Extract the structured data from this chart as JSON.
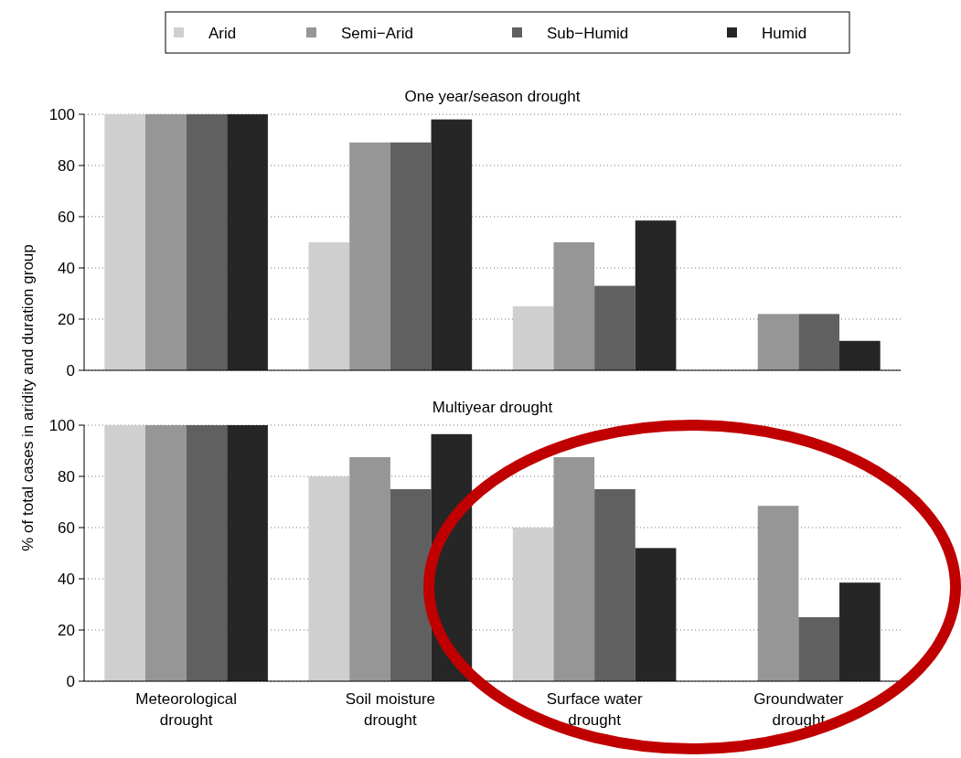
{
  "chart_data": [
    {
      "type": "bar",
      "title": "One year/season drought",
      "ylabel": "% of total cases in aridity and duration group",
      "categories": [
        "Meteorological drought",
        "Soil moisture drought",
        "Surface water drought",
        "Groundwater drought"
      ],
      "series": [
        {
          "name": "Arid",
          "color": "#cfcfcf",
          "values": [
            100,
            50,
            25,
            0
          ]
        },
        {
          "name": "Semi−Arid",
          "color": "#969696",
          "values": [
            100,
            89,
            50,
            22
          ]
        },
        {
          "name": "Sub−Humid",
          "color": "#606060",
          "values": [
            100,
            89,
            33,
            22
          ]
        },
        {
          "name": "Humid",
          "color": "#262626",
          "values": [
            100,
            98,
            58.5,
            11.5
          ]
        }
      ],
      "ylim": [
        0,
        100
      ],
      "yticks": [
        0,
        20,
        40,
        60,
        80,
        100
      ],
      "grid": "y",
      "legend": "top",
      "tick_labels": "y"
    },
    {
      "type": "bar",
      "title": "Multiyear drought",
      "categories": [
        "Meteorological drought",
        "Soil moisture drought",
        "Surface water drought",
        "Groundwater drought"
      ],
      "series": [
        {
          "name": "Arid",
          "color": "#cfcfcf",
          "values": [
            100,
            80,
            60,
            0
          ]
        },
        {
          "name": "Semi−Arid",
          "color": "#969696",
          "values": [
            100,
            87.5,
            87.5,
            68.5
          ]
        },
        {
          "name": "Sub−Humid",
          "color": "#606060",
          "values": [
            100,
            75,
            75,
            25
          ]
        },
        {
          "name": "Humid",
          "color": "#262626",
          "values": [
            100,
            96.5,
            52,
            38.5
          ]
        }
      ],
      "ylim": [
        0,
        100
      ],
      "yticks": [
        0,
        20,
        40,
        60,
        80,
        100
      ],
      "grid": "y"
    }
  ]
}
